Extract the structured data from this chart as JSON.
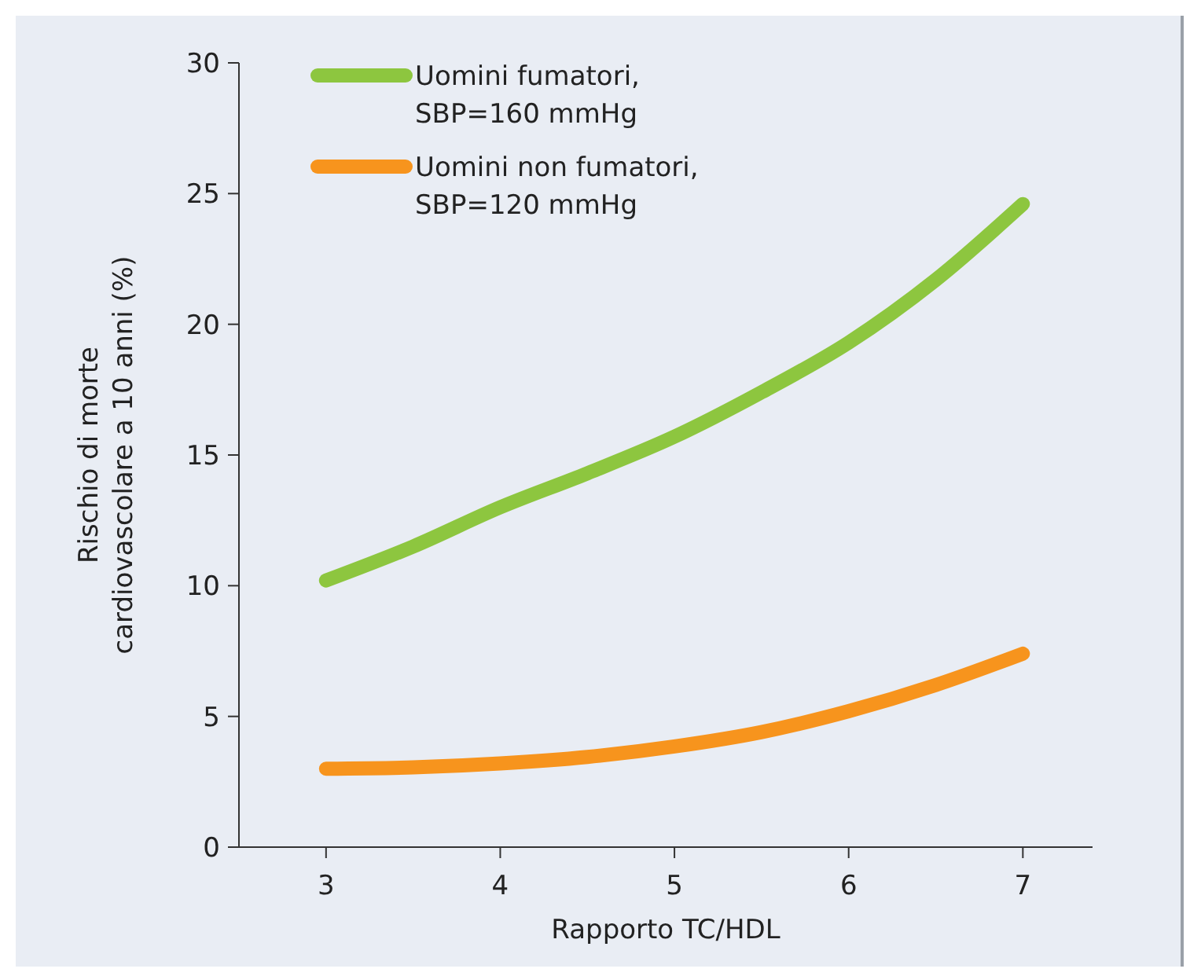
{
  "chart_data": {
    "type": "line",
    "xlabel": "Rapporto TC/HDL",
    "ylabel": "Rischio di morte\ncardiovascolare a 10 anni (%)",
    "xlim": [
      2.5,
      7.4
    ],
    "xticks": [
      3,
      4,
      5,
      6,
      7
    ],
    "ylim": [
      0,
      30
    ],
    "yticks": [
      0,
      5,
      10,
      15,
      20,
      25,
      30
    ],
    "grid": false,
    "legend": "top left",
    "marker": "none",
    "line_style": "solid",
    "x": [
      3,
      3.5,
      4,
      4.5,
      5,
      5.5,
      6,
      6.5,
      7
    ],
    "series": [
      {
        "name": "Uomini fumatori,\nSBP=160 mmHg",
        "color": "#8dc63f",
        "values": [
          10.2,
          11.5,
          13.0,
          14.3,
          15.7,
          17.4,
          19.3,
          21.7,
          24.6
        ]
      },
      {
        "name": "Uomini non fumatori,\nSBP=120 mmHg",
        "color": "#f7941d",
        "values": [
          3.0,
          3.05,
          3.2,
          3.45,
          3.85,
          4.4,
          5.2,
          6.2,
          7.4
        ]
      }
    ]
  }
}
